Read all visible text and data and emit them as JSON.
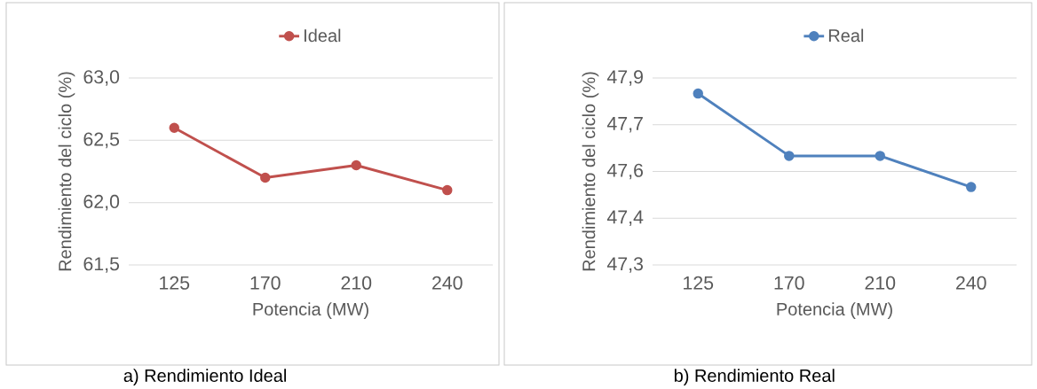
{
  "chart_data": [
    {
      "type": "line",
      "categories": [
        "125",
        "170",
        "210",
        "240"
      ],
      "xlabel": "Potencia (MW)",
      "ylabel": "Rendimiento del ciclo (%)",
      "series": [
        {
          "name": "Ideal",
          "color": "#c0504d",
          "values": [
            62.6,
            62.2,
            62.3,
            62.1
          ]
        }
      ],
      "ylim": [
        61.5,
        63.0
      ],
      "yticks": [
        {
          "value": 61.5,
          "label": "61,5"
        },
        {
          "value": 62.0,
          "label": "62,0"
        },
        {
          "value": 62.5,
          "label": "62,5"
        },
        {
          "value": 63.0,
          "label": "63,0"
        }
      ],
      "grid": "y",
      "legend": "top",
      "marker": "circle",
      "line_style": "solid",
      "annotations": [
        "a) Rendimiento Ideal"
      ]
    },
    {
      "type": "line",
      "categories": [
        "125",
        "170",
        "210",
        "240"
      ],
      "xlabel": "Potencia (MW)",
      "ylabel": "Rendimiento del ciclo (%)",
      "series": [
        {
          "name": "Real",
          "color": "#4f81bd",
          "values": [
            47.8,
            47.6,
            47.6,
            47.5
          ]
        }
      ],
      "ylim": [
        47.25,
        47.85
      ],
      "yticks": [
        {
          "value": 47.25,
          "label": "47,3"
        },
        {
          "value": 47.4,
          "label": "47,4"
        },
        {
          "value": 47.55,
          "label": "47,6"
        },
        {
          "value": 47.7,
          "label": "47,7"
        },
        {
          "value": 47.85,
          "label": "47,9"
        }
      ],
      "grid": "y",
      "legend": "top",
      "marker": "circle",
      "line_style": "solid",
      "annotations": [
        "b) Rendimiento Real"
      ]
    }
  ]
}
